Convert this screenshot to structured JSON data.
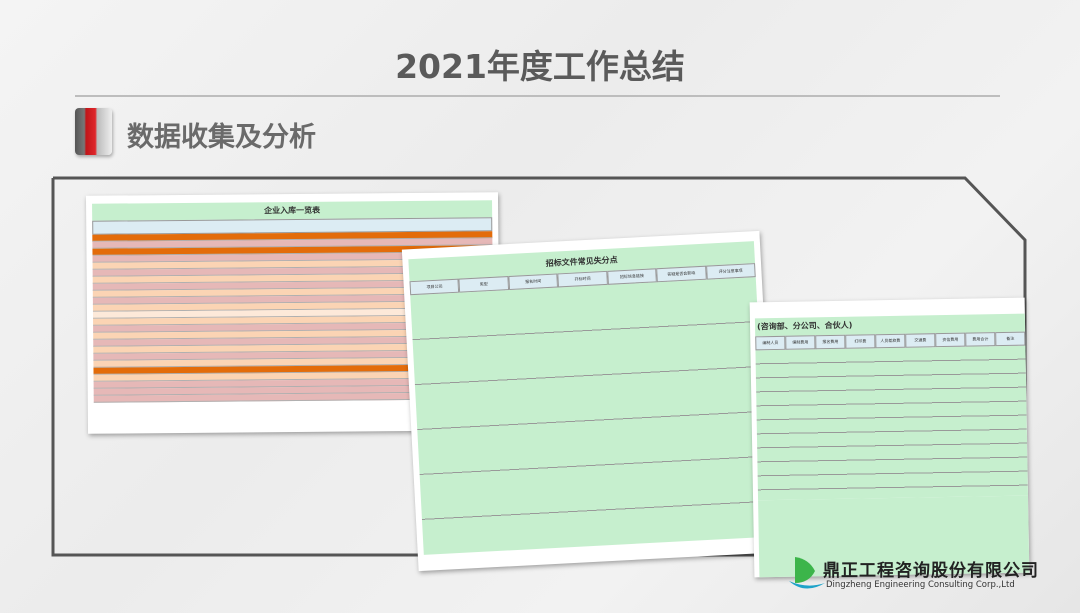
{
  "slide": {
    "title": "2021年度工作总结",
    "section_title": "数据收集及分析"
  },
  "sheets": [
    {
      "title": "企业入库一览表",
      "row_colors": [
        "#e36c0a",
        "#e6b8b7",
        "#e36c0a",
        "#e6b8b7",
        "#fbd4b4",
        "#e6b8b7",
        "#fbd4b4",
        "#e6b8b7",
        "#fbd4b4",
        "#e6b8b7",
        "#fbd4b4",
        "#fde9d9",
        "#fbd4b4",
        "#e6b8b7",
        "#fbd4b4",
        "#e6b8b7",
        "#fbd4b4",
        "#e6b8b7",
        "#fbd4b4",
        "#e36c0a",
        "#fbd4b4",
        "#e6b8b7",
        "#e6b8b7",
        "#e6b8b7"
      ]
    },
    {
      "title": "招标文件常见失分点",
      "headers": [
        "项目公司",
        "类型",
        "报名时间",
        "开标时间",
        "招标信息链接",
        "答疑是否会影响",
        "评分注意事项"
      ]
    },
    {
      "title": "(咨询部、分公司、合伙人)",
      "headers": [
        "编制人员",
        "编制费用",
        "报名费用",
        "打印费",
        "人员差旅费",
        "交通费",
        "资信费用",
        "费用合计",
        "备注"
      ]
    }
  ],
  "company": {
    "name_cn": "鼎正工程咨询股份有限公司",
    "name_en": "Dingzheng Engineering Consulting Corp.,Ltd",
    "brand_colors": [
      "#3cb54a",
      "#1fa3c9"
    ]
  }
}
